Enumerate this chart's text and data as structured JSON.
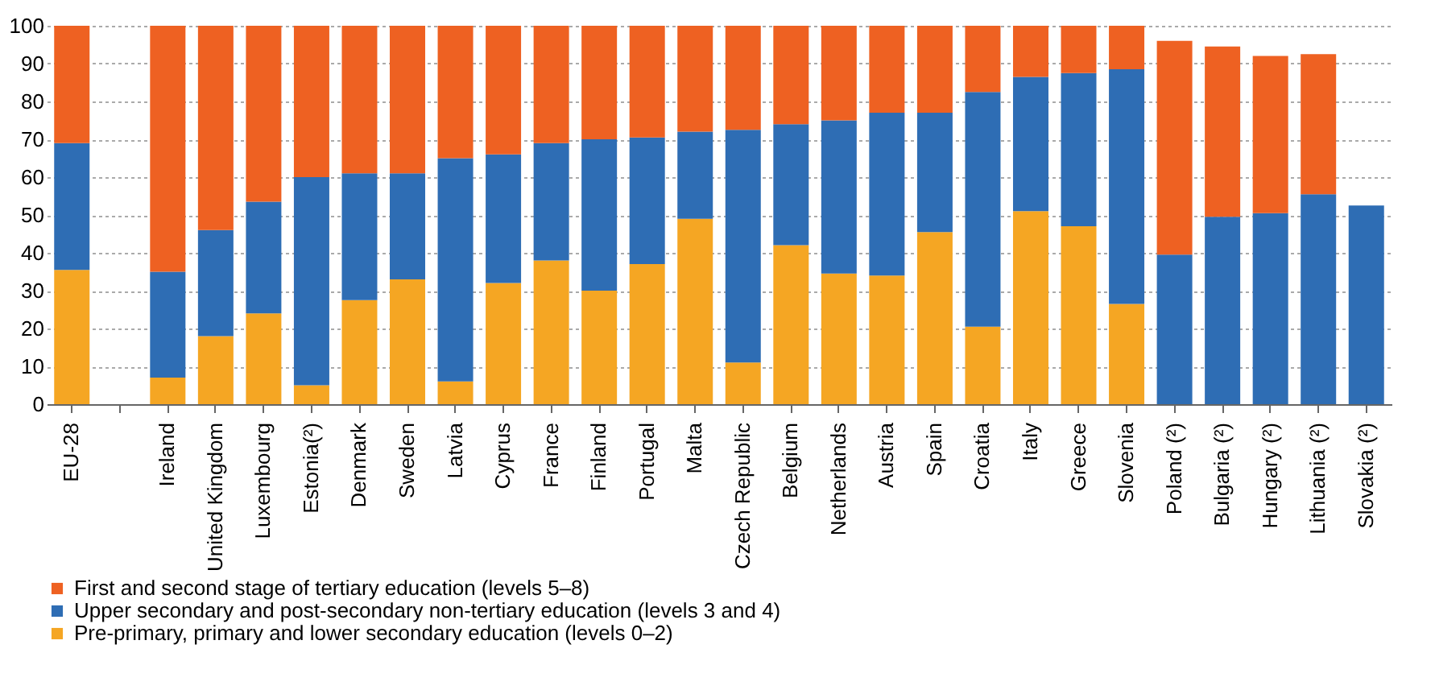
{
  "chart_data": {
    "type": "bar",
    "stacked": true,
    "categories": [
      "EU-28",
      null,
      "Ireland",
      "United Kingdom",
      "Luxembourg",
      "Estonia(²)",
      "Denmark",
      "Sweden",
      "Latvia",
      "Cyprus",
      "France",
      "Finland",
      "Portugal",
      "Malta",
      "Czech Republic",
      "Belgium",
      "Netherlands",
      "Austria",
      "Spain",
      "Croatia",
      "Italy",
      "Greece",
      "Slovenia",
      "Poland (²)",
      "Bulgaria (²)",
      "Hungary (²)",
      "Lithuania (²)",
      "Slovakia (²)"
    ],
    "series": [
      {
        "name": "Pre-primary, primary and lower secondary education (levels 0–2)",
        "color": "#f5a623",
        "values": [
          35.5,
          null,
          7,
          18,
          24,
          5,
          27.5,
          33,
          6,
          32,
          38,
          30,
          37,
          49,
          11,
          42,
          34.5,
          34,
          45.5,
          20.5,
          51,
          47,
          26.5,
          null,
          null,
          null,
          null,
          null
        ]
      },
      {
        "name": "Upper secondary and post-secondary non-tertiary education (levels 3 and 4)",
        "color": "#2e6db4",
        "values": [
          33.5,
          null,
          28,
          28,
          29.5,
          55,
          33.5,
          28,
          59,
          34,
          31,
          40,
          33.5,
          23,
          61.5,
          32,
          40.5,
          43,
          31.5,
          62,
          35.5,
          40.5,
          62,
          39.5,
          49.5,
          50.5,
          55.5,
          52.5
        ]
      },
      {
        "name": "First and second stage of tertiary education (levels 5–8)",
        "color": "#ee6122",
        "values": [
          31,
          null,
          65,
          54,
          46.5,
          40,
          39,
          39,
          35,
          34,
          31,
          30,
          29.5,
          28,
          27.5,
          26,
          25,
          23,
          23,
          17.5,
          13.5,
          12.5,
          11.5,
          56.5,
          45,
          41.5,
          37,
          null
        ]
      }
    ],
    "ylim": [
      0,
      100
    ],
    "yticks": [
      0,
      10,
      20,
      30,
      40,
      50,
      60,
      70,
      80,
      90,
      100
    ],
    "grid": "y",
    "legend": "bottom"
  }
}
